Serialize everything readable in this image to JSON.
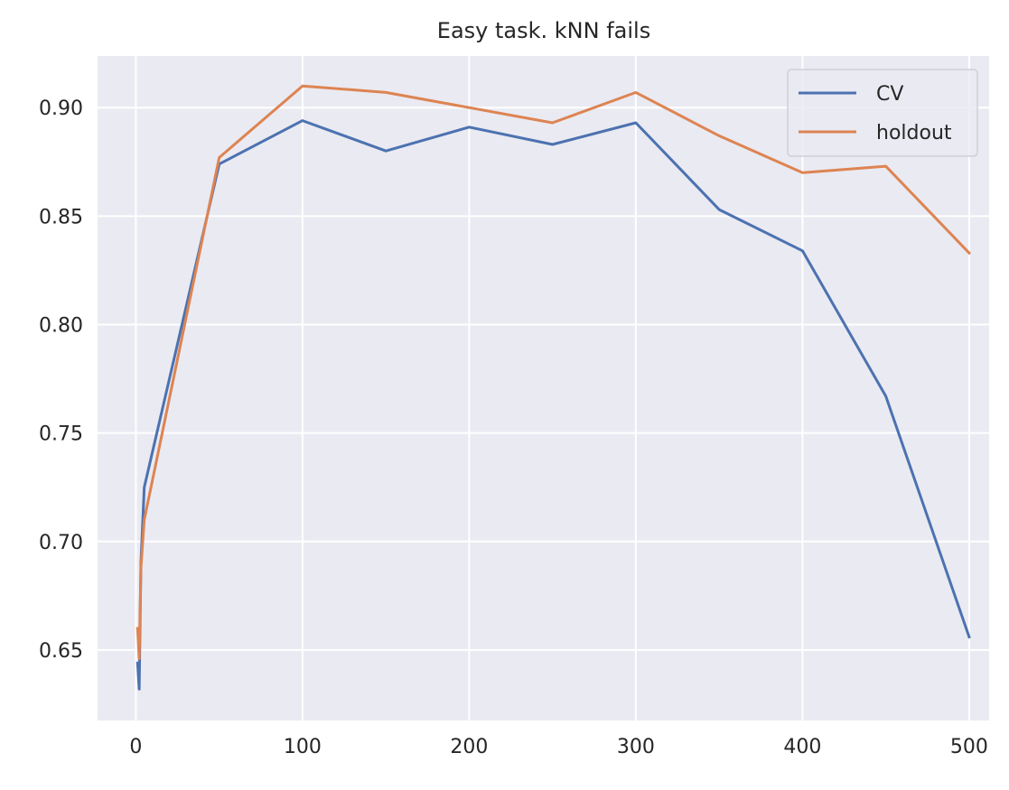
{
  "chart_data": {
    "type": "line",
    "title": "Easy task. kNN fails",
    "xlabel": "",
    "ylabel": "",
    "xlim": [
      -23,
      512
    ],
    "ylim": [
      0.6175,
      0.9238
    ],
    "x_ticks": [
      0,
      100,
      200,
      300,
      400,
      500
    ],
    "x_tick_labels": [
      "0",
      "100",
      "200",
      "300",
      "400",
      "500"
    ],
    "y_ticks": [
      0.65,
      0.7,
      0.75,
      0.8,
      0.85,
      0.9
    ],
    "y_tick_labels": [
      "0.65",
      "0.70",
      "0.75",
      "0.80",
      "0.85",
      "0.90"
    ],
    "grid": true,
    "legend_position": "top-right",
    "background_color": "#eaeaf2",
    "grid_color": "#ffffff",
    "series": [
      {
        "name": "CV",
        "color": "#4c72b0",
        "x": [
          1,
          2,
          3,
          5,
          50,
          100,
          150,
          200,
          250,
          300,
          350,
          400,
          450,
          500
        ],
        "y": [
          0.644,
          0.632,
          0.69,
          0.725,
          0.874,
          0.894,
          0.88,
          0.891,
          0.883,
          0.893,
          0.853,
          0.834,
          0.767,
          0.656
        ]
      },
      {
        "name": "holdout",
        "color": "#dd8452",
        "x": [
          1,
          2,
          3,
          5,
          50,
          100,
          150,
          200,
          250,
          300,
          350,
          400,
          450,
          500
        ],
        "y": [
          0.66,
          0.646,
          0.688,
          0.71,
          0.877,
          0.91,
          0.907,
          0.9,
          0.893,
          0.907,
          0.887,
          0.87,
          0.873,
          0.833
        ]
      }
    ]
  }
}
